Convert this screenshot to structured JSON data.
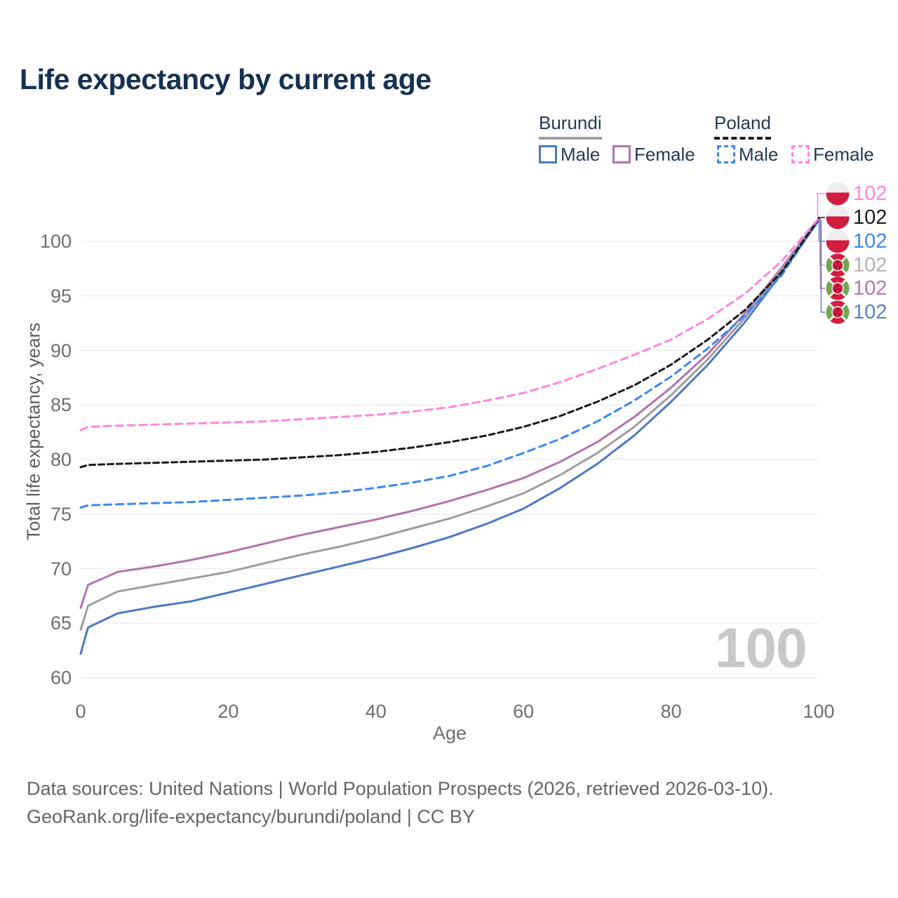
{
  "title": "Life expectancy by current age",
  "legend": {
    "burundi": {
      "label": "Burundi",
      "male": "Male",
      "female": "Female"
    },
    "poland": {
      "label": "Poland",
      "male": "Male",
      "female": "Female"
    }
  },
  "watermark": "100",
  "footer": {
    "line1": "Data sources: United Nations | World Population Prospects (2026, retrieved 2026-03-10).",
    "line2": "GeoRank.org/life-expectancy/burundi/poland | CC BY"
  },
  "colors": {
    "title": "#16314f",
    "grid": "#ececec",
    "tick_text": "#6e6e6e",
    "watermark": "#c8c8c8",
    "burundi_male": "#4d79c3",
    "burundi_female": "#b173ae",
    "burundi_both": "#9d9d9d",
    "poland_male": "#3d87f0",
    "poland_female": "#ff85e1",
    "poland_both": "#1a1a1a"
  },
  "chart_data": {
    "type": "line",
    "title": "Life expectancy by current age",
    "xlabel": "Age",
    "ylabel": "Total life expectancy, years",
    "xlim": [
      0,
      100
    ],
    "ylim": [
      60,
      103
    ],
    "x_ticks": [
      0,
      20,
      40,
      60,
      80,
      100
    ],
    "y_ticks": [
      60,
      65,
      70,
      75,
      80,
      85,
      90,
      95,
      100
    ],
    "grid": "horizontal",
    "legend_position": "top-right",
    "x": [
      0,
      1,
      5,
      10,
      15,
      20,
      25,
      30,
      35,
      40,
      45,
      50,
      55,
      60,
      65,
      70,
      75,
      80,
      85,
      90,
      95,
      100
    ],
    "series": [
      {
        "name": "Poland Female",
        "country": "Poland",
        "sex": "Female",
        "flag": "poland",
        "color": "#ff85e1",
        "dash": "10 7",
        "end_label": "102",
        "label_color": "#ff85e1",
        "values": [
          82.7,
          83.0,
          83.1,
          83.2,
          83.3,
          83.4,
          83.5,
          83.7,
          83.9,
          84.1,
          84.4,
          84.8,
          85.4,
          86.1,
          87.1,
          88.3,
          89.6,
          91.0,
          92.9,
          95.2,
          98.2,
          102.1
        ]
      },
      {
        "name": "Poland Both sexes",
        "country": "Poland",
        "sex": "Both",
        "flag": "poland",
        "color": "#1a1a1a",
        "dash": "8 5",
        "end_label": "102",
        "label_color": "#1a1a1a",
        "values": [
          79.3,
          79.5,
          79.6,
          79.7,
          79.8,
          79.9,
          80.0,
          80.2,
          80.4,
          80.7,
          81.1,
          81.6,
          82.2,
          83.0,
          84.0,
          85.3,
          86.8,
          88.7,
          91.0,
          93.7,
          97.2,
          102.05
        ]
      },
      {
        "name": "Poland Male",
        "country": "Poland",
        "sex": "Male",
        "flag": "poland",
        "color": "#3d87f0",
        "dash": "10 7",
        "end_label": "102",
        "label_color": "#3d87f0",
        "values": [
          75.6,
          75.8,
          75.9,
          76.0,
          76.1,
          76.3,
          76.5,
          76.7,
          77.0,
          77.4,
          77.9,
          78.5,
          79.4,
          80.6,
          81.9,
          83.5,
          85.4,
          87.6,
          90.2,
          93.2,
          96.9,
          102.0
        ]
      },
      {
        "name": "Burundi Both sexes",
        "country": "Burundi",
        "sex": "Both",
        "flag": "burundi",
        "color": "#9d9d9d",
        "dash": "",
        "end_label": "102",
        "label_color": "#b3b3b3",
        "values": [
          64.4,
          66.6,
          67.9,
          68.5,
          69.1,
          69.7,
          70.5,
          71.3,
          72.0,
          72.8,
          73.7,
          74.6,
          75.7,
          76.9,
          78.6,
          80.6,
          83.0,
          85.9,
          89.2,
          93.0,
          97.4,
          101.95
        ]
      },
      {
        "name": "Burundi Female",
        "country": "Burundi",
        "sex": "Female",
        "flag": "burundi",
        "color": "#b173ae",
        "dash": "",
        "end_label": "102",
        "label_color": "#b377af",
        "values": [
          66.4,
          68.5,
          69.7,
          70.2,
          70.8,
          71.5,
          72.3,
          73.1,
          73.8,
          74.5,
          75.3,
          76.2,
          77.2,
          78.3,
          79.8,
          81.6,
          83.9,
          86.6,
          89.7,
          93.4,
          97.6,
          102.1
        ]
      },
      {
        "name": "Burundi Male",
        "country": "Burundi",
        "sex": "Male",
        "flag": "burundi",
        "color": "#4d79c3",
        "dash": "",
        "end_label": "102",
        "label_color": "#5b85c8",
        "values": [
          62.2,
          64.6,
          65.9,
          66.5,
          67.0,
          67.8,
          68.6,
          69.4,
          70.2,
          71.0,
          71.9,
          72.9,
          74.1,
          75.5,
          77.4,
          79.6,
          82.2,
          85.3,
          88.7,
          92.6,
          97.1,
          101.9
        ]
      }
    ]
  }
}
